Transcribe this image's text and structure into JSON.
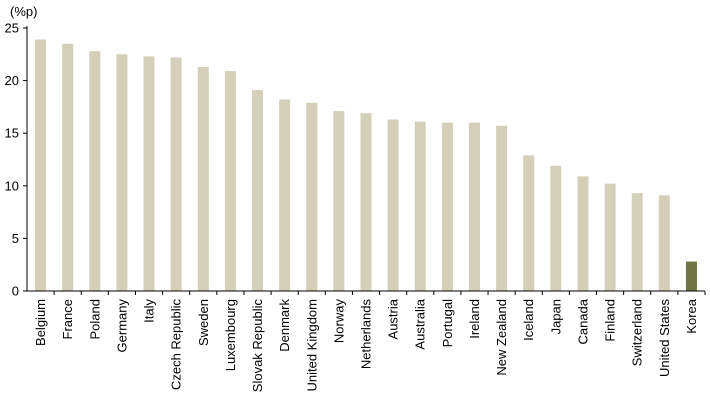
{
  "chart_data": {
    "type": "bar",
    "title": "",
    "xlabel": "",
    "ylabel": "(%p)",
    "ylim": [
      0,
      25
    ],
    "yticks": [
      0,
      5,
      10,
      15,
      20,
      25
    ],
    "grid": false,
    "legend": "none",
    "categories": [
      "Belgium",
      "France",
      "Poland",
      "Germany",
      "Italy",
      "Czech Republic",
      "Sweden",
      "Luxembourg",
      "Slovak Republic",
      "Denmark",
      "United Kingdom",
      "Norway",
      "Netherlands",
      "Austria",
      "Australia",
      "Portugal",
      "Ireland",
      "New Zealand",
      "Iceland",
      "Japan",
      "Canada",
      "Finland",
      "Switzerland",
      "United States",
      "Korea"
    ],
    "values": [
      23.9,
      23.5,
      22.8,
      22.5,
      22.3,
      22.2,
      21.3,
      20.9,
      19.1,
      18.2,
      17.9,
      17.1,
      16.9,
      16.3,
      16.1,
      16.0,
      16.0,
      15.7,
      12.9,
      11.9,
      10.9,
      10.2,
      9.3,
      9.1,
      2.8
    ],
    "colors": {
      "default_bar": "#d3cfb9",
      "highlight_bar": "#6f7442",
      "axis": "#000000"
    },
    "highlight_category": "Korea"
  }
}
